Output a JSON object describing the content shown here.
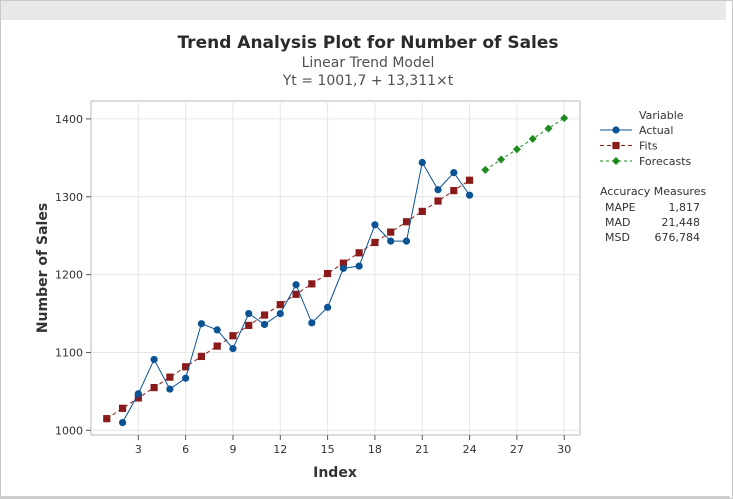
{
  "chart_data": {
    "type": "line",
    "title": "Trend Analysis Plot for Number of Sales",
    "subtitle": "Linear Trend Model",
    "equation": "Yt = 1001,7 + 13,311×t",
    "xlabel": "Index",
    "ylabel": "Number of Sales",
    "xlim": [
      0,
      31
    ],
    "ylim": [
      994,
      1423
    ],
    "xticks": [
      3,
      6,
      9,
      12,
      15,
      18,
      21,
      24,
      27,
      30
    ],
    "yticks": [
      1000,
      1100,
      1200,
      1300,
      1400
    ],
    "grid": true,
    "legend_title": "Variable",
    "legend_placement": "right",
    "series": [
      {
        "name": "Actual",
        "color": "#0b5394",
        "marker": "circle",
        "x": [
          2,
          3,
          4,
          5,
          6,
          7,
          8,
          9,
          10,
          11,
          12,
          13,
          14,
          15,
          16,
          17,
          18,
          19,
          20,
          21,
          22,
          23,
          24
        ],
        "values": [
          1010,
          1047,
          1091,
          1053,
          1067,
          1137,
          1129,
          1105,
          1150,
          1136,
          1150,
          1187,
          1138,
          1158,
          1208,
          1211,
          1264,
          1243,
          1243,
          1344,
          1309,
          1331,
          1302
        ]
      },
      {
        "name": "Fits",
        "color": "#8b1a1a",
        "marker": "square",
        "x": [
          1,
          2,
          3,
          4,
          5,
          6,
          7,
          8,
          9,
          10,
          11,
          12,
          13,
          14,
          15,
          16,
          17,
          18,
          19,
          20,
          21,
          22,
          23,
          24
        ],
        "values": [
          1015,
          1028.3,
          1041.6,
          1054.9,
          1068.3,
          1081.6,
          1094.9,
          1108.2,
          1121.5,
          1134.8,
          1148.1,
          1161.4,
          1174.7,
          1188.1,
          1201.4,
          1214.7,
          1228,
          1241.3,
          1254.6,
          1267.9,
          1281.2,
          1294.5,
          1307.9,
          1321.2
        ]
      },
      {
        "name": "Forecasts",
        "color": "#1e8b1e",
        "marker": "diamond",
        "x": [
          25,
          26,
          27,
          28,
          29,
          30
        ],
        "values": [
          1334.5,
          1347.8,
          1361.1,
          1374.4,
          1387.7,
          1401
        ]
      }
    ],
    "accuracy": {
      "title": "Accuracy Measures",
      "rows": [
        {
          "label": "MAPE",
          "value": "1,817"
        },
        {
          "label": "MAD",
          "value": "21,448"
        },
        {
          "label": "MSD",
          "value": "676,784"
        }
      ]
    }
  }
}
